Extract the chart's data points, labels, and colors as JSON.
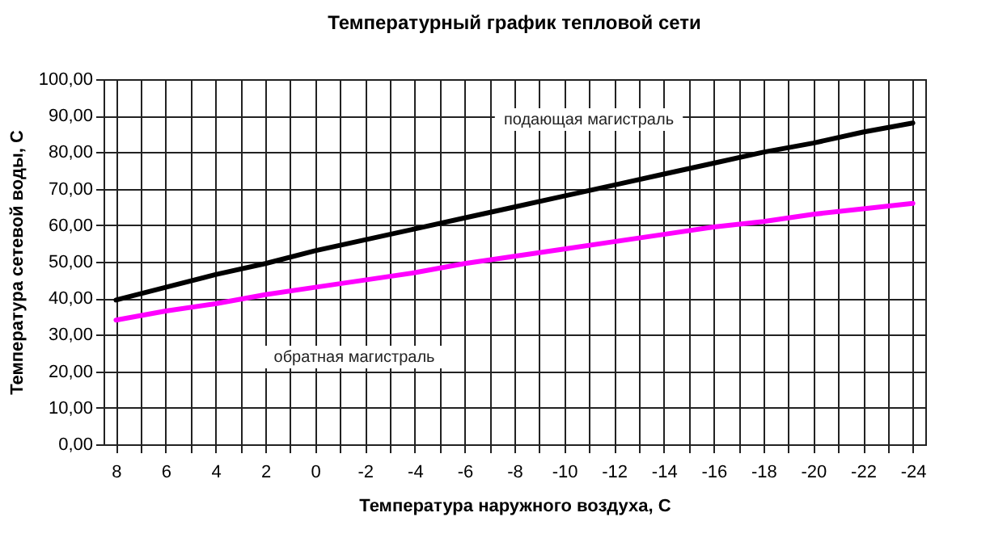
{
  "chart_data": {
    "type": "line",
    "title": "Температурный график тепловой сети",
    "xlabel": "Температура наружного воздуха, С",
    "ylabel": "Температура сетевой воды, С",
    "x": [
      8,
      6,
      4,
      2,
      0,
      -2,
      -4,
      -6,
      -8,
      -10,
      -12,
      -14,
      -16,
      -18,
      -20,
      -22,
      -24
    ],
    "series": [
      {
        "color": "#000000",
        "values": [
          39.5,
          43,
          46.5,
          49.5,
          53,
          56,
          59,
          62,
          65,
          68,
          71,
          74,
          77,
          80,
          82.5,
          85.5,
          88
        ]
      },
      {
        "color": "#ff00ff",
        "values": [
          34,
          36.5,
          38.5,
          41,
          43,
          45,
          47,
          49.5,
          51.5,
          53.5,
          55.5,
          57.5,
          59.5,
          61,
          63,
          64.5,
          66
        ]
      }
    ],
    "xlim": [
      8.5,
      -24.5
    ],
    "xticks": [
      8,
      {
        "value": 7,
        "label": null
      },
      6,
      {
        "value": 5,
        "label": null
      },
      4,
      {
        "value": 3,
        "label": null
      },
      2,
      {
        "value": 1,
        "label": null
      },
      0,
      {
        "value": -1,
        "label": null
      },
      -2,
      {
        "value": -3,
        "label": null
      },
      -4,
      {
        "value": -5,
        "label": null
      },
      -6,
      {
        "value": -7,
        "label": null
      },
      -8,
      {
        "value": -9,
        "label": null
      },
      -10,
      {
        "value": -11,
        "label": null
      },
      -12,
      {
        "value": -13,
        "label": null
      },
      -14,
      {
        "value": -15,
        "label": null
      },
      -16,
      {
        "value": -17,
        "label": null
      },
      -18,
      {
        "value": -19,
        "label": null
      },
      -20,
      {
        "value": -21,
        "label": null
      },
      -22,
      {
        "value": -23,
        "label": null
      },
      -24
    ],
    "ylim": [
      0,
      100
    ],
    "yticks": [
      {
        "value": 0,
        "label": "0,00"
      },
      {
        "value": 10,
        "label": "10,00"
      },
      {
        "value": 20,
        "label": "20,00"
      },
      {
        "value": 30,
        "label": "30,00"
      },
      {
        "value": 40,
        "label": "40,00"
      },
      {
        "value": 50,
        "label": "50,00"
      },
      {
        "value": 60,
        "label": "60,00"
      },
      {
        "value": 70,
        "label": "70,00"
      },
      {
        "value": 80,
        "label": "80,00"
      },
      {
        "value": 90,
        "label": "90,00"
      },
      {
        "value": 100,
        "label": "100,00"
      }
    ],
    "grid": true,
    "legend": false,
    "marker": "none",
    "line_style": "solid",
    "annotations": [
      "подающая магистраль",
      "обратная магистраль"
    ]
  }
}
